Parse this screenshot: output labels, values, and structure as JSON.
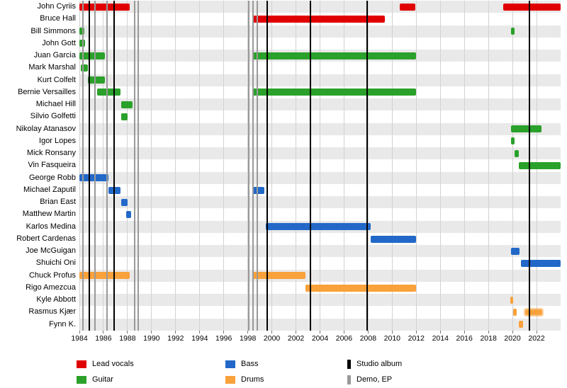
{
  "chart_data": {
    "type": "timeline",
    "title": "",
    "axis": {
      "min": 1984,
      "max": 2024,
      "ticks": [
        1984,
        1986,
        1988,
        1990,
        1992,
        1994,
        1996,
        1998,
        2000,
        2002,
        2004,
        2006,
        2008,
        2010,
        2012,
        2014,
        2016,
        2018,
        2020,
        2022
      ],
      "grid": true
    },
    "roles": {
      "lead_vocals": {
        "label": "Lead vocals",
        "color": "#e00000"
      },
      "guitar": {
        "label": "Guitar",
        "color": "#2aa12a"
      },
      "bass": {
        "label": "Bass",
        "color": "#2268c8"
      },
      "drums": {
        "label": "Drums",
        "color": "#f9a13a"
      }
    },
    "events": {
      "studio_album": {
        "label": "Studio album",
        "color": "#000000",
        "years": [
          1984.8,
          1986.9,
          1999.6,
          2003.2,
          2007.9,
          2021.4
        ]
      },
      "demo_ep": {
        "label": "Demo, EP",
        "color": "#999999",
        "years": [
          1984.3,
          1985.3,
          1986.3,
          1988.6,
          1988.9,
          1998.1,
          1998.45,
          1998.8
        ]
      }
    },
    "members": [
      {
        "name": "John Cyriis",
        "role": "lead_vocals",
        "bars": [
          {
            "start": 1984.0,
            "end": 1988.2
          },
          {
            "start": 2010.6,
            "end": 2011.9
          },
          {
            "start": 2019.2,
            "end": 2024.0
          }
        ]
      },
      {
        "name": "Bruce Hall",
        "role": "lead_vocals",
        "bars": [
          {
            "start": 1998.4,
            "end": 2009.4
          }
        ]
      },
      {
        "name": "Bill Simmons",
        "role": "guitar",
        "bars": [
          {
            "start": 1984.0,
            "end": 1984.4
          },
          {
            "start": 2019.85,
            "end": 2020.15
          }
        ]
      },
      {
        "name": "John Gott",
        "role": "guitar",
        "bars": [
          {
            "start": 1984.0,
            "end": 1984.5
          }
        ]
      },
      {
        "name": "Juan Garcia",
        "role": "guitar",
        "bars": [
          {
            "start": 1984.0,
            "end": 1986.1
          },
          {
            "start": 1998.4,
            "end": 2012.0
          }
        ]
      },
      {
        "name": "Mark Marshal",
        "role": "guitar",
        "bars": [
          {
            "start": 1984.1,
            "end": 1984.7
          }
        ]
      },
      {
        "name": "Kurt Colfelt",
        "role": "guitar",
        "bars": [
          {
            "start": 1984.7,
            "end": 1986.1
          }
        ]
      },
      {
        "name": "Bernie Versailles",
        "role": "guitar",
        "bars": [
          {
            "start": 1985.5,
            "end": 1987.4
          },
          {
            "start": 1998.4,
            "end": 2012.0
          }
        ]
      },
      {
        "name": "Michael Hill",
        "role": "guitar",
        "bars": [
          {
            "start": 1987.5,
            "end": 1988.4
          }
        ]
      },
      {
        "name": "Silvio Golfetti",
        "role": "guitar",
        "bars": [
          {
            "start": 1987.5,
            "end": 1988.0
          }
        ]
      },
      {
        "name": "Nikolay Atanasov",
        "role": "guitar",
        "bars": [
          {
            "start": 2019.9,
            "end": 2022.4
          }
        ]
      },
      {
        "name": "Igor Lopes",
        "role": "guitar",
        "bars": [
          {
            "start": 2019.9,
            "end": 2020.2
          }
        ]
      },
      {
        "name": "Mick Ronsany",
        "role": "guitar",
        "bars": [
          {
            "start": 2020.2,
            "end": 2020.55
          }
        ]
      },
      {
        "name": "Vin Fasqueira",
        "role": "guitar",
        "bars": [
          {
            "start": 2020.55,
            "end": 2024.0
          }
        ]
      },
      {
        "name": "George Robb",
        "role": "bass",
        "bars": [
          {
            "start": 1984.0,
            "end": 1986.4
          }
        ]
      },
      {
        "name": "Michael Zaputil",
        "role": "bass",
        "bars": [
          {
            "start": 1986.4,
            "end": 1987.4
          },
          {
            "start": 1998.4,
            "end": 1999.4
          }
        ]
      },
      {
        "name": "Brian East",
        "role": "bass",
        "bars": [
          {
            "start": 1987.5,
            "end": 1988.0
          }
        ]
      },
      {
        "name": "Matthew Martin",
        "role": "bass",
        "bars": [
          {
            "start": 1987.9,
            "end": 1988.3
          }
        ]
      },
      {
        "name": "Karlos Medina",
        "role": "bass",
        "bars": [
          {
            "start": 1999.5,
            "end": 2008.2
          }
        ]
      },
      {
        "name": "Robert Cardenas",
        "role": "bass",
        "bars": [
          {
            "start": 2008.2,
            "end": 2012.0
          }
        ]
      },
      {
        "name": "Joe McGuigan",
        "role": "bass",
        "bars": [
          {
            "start": 2019.9,
            "end": 2020.6
          }
        ]
      },
      {
        "name": "Shuichi Oni",
        "role": "bass",
        "bars": [
          {
            "start": 2020.7,
            "end": 2024.0
          }
        ]
      },
      {
        "name": "Chuck Profus",
        "role": "drums",
        "bars": [
          {
            "start": 1984.0,
            "end": 1988.2
          },
          {
            "start": 1998.4,
            "end": 2002.8
          }
        ]
      },
      {
        "name": "Rigo Amezcua",
        "role": "drums",
        "bars": [
          {
            "start": 2002.8,
            "end": 2012.0
          }
        ]
      },
      {
        "name": "Kyle Abbott",
        "role": "drums",
        "bars": [
          {
            "start": 2019.8,
            "end": 2020.05
          }
        ]
      },
      {
        "name": "Rasmus Kjær",
        "role": "drums",
        "bars": [
          {
            "start": 2020.05,
            "end": 2020.35
          },
          {
            "start": 2021.0,
            "end": 2022.5,
            "fuzzy": true
          }
        ]
      },
      {
        "name": "Fynn K.",
        "role": "drums",
        "bars": [
          {
            "start": 2020.5,
            "end": 2020.85
          }
        ]
      }
    ],
    "legend": {
      "columns": [
        [
          "lead_vocals",
          "guitar"
        ],
        [
          "bass",
          "drums"
        ],
        [
          "studio_album",
          "demo_ep"
        ]
      ]
    },
    "style": {
      "stripe_color": "#e9e9e9",
      "gridline_color": "#d2d2d2"
    }
  }
}
